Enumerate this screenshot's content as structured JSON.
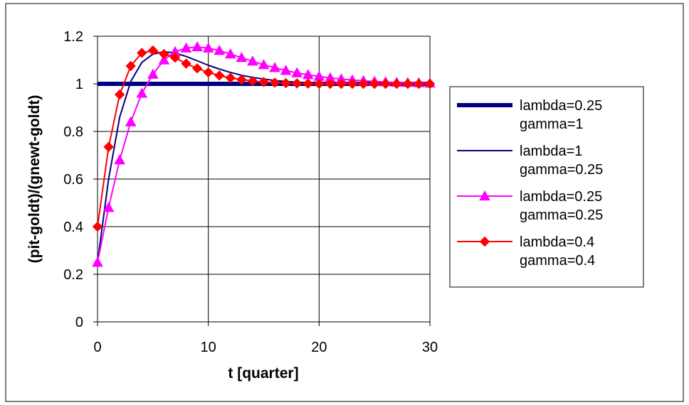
{
  "chart_data": {
    "type": "line",
    "title": "",
    "xlabel": "t [quarter]",
    "ylabel": "(pit-goldt)/(gnewt-goldt)",
    "xlim": [
      0,
      30
    ],
    "ylim": [
      0,
      1.2
    ],
    "xticks": [
      0,
      10,
      20,
      30
    ],
    "yticks": [
      0,
      0.2,
      0.4,
      0.6,
      0.8,
      1,
      1.2
    ],
    "xtick_labels": [
      "0",
      "10",
      "20",
      "30"
    ],
    "ytick_labels": [
      "0",
      "0.2",
      "0.4",
      "0.6",
      "0.8",
      "1",
      "1.2"
    ],
    "grid": "horizontal and vertical major gridlines",
    "legend_position": "right",
    "x": [
      0,
      1,
      2,
      3,
      4,
      5,
      6,
      7,
      8,
      9,
      10,
      11,
      12,
      13,
      14,
      15,
      16,
      17,
      18,
      19,
      20,
      21,
      22,
      23,
      24,
      25,
      26,
      27,
      28,
      29,
      30
    ],
    "series": [
      {
        "name": "lambda=0.25 gamma=1",
        "legend_lines": [
          "lambda=0.25",
          "gamma=1"
        ],
        "color": "#000080",
        "marker": "none",
        "style": "thick",
        "values": [
          1,
          1,
          1,
          1,
          1,
          1,
          1,
          1,
          1,
          1,
          1,
          1,
          1,
          1,
          1,
          1,
          1,
          1,
          1,
          1,
          1,
          1,
          1,
          1,
          1,
          1,
          1,
          1,
          1,
          1,
          1
        ]
      },
      {
        "name": "lambda=1 gamma=0.25",
        "legend_lines": [
          "lambda=1",
          "gamma=0.25"
        ],
        "color": "#000080",
        "marker": "none",
        "style": "thin",
        "values": [
          0.25,
          0.6,
          0.86,
          1.01,
          1.09,
          1.125,
          1.135,
          1.13,
          1.115,
          1.097,
          1.078,
          1.062,
          1.048,
          1.036,
          1.027,
          1.02,
          1.014,
          1.01,
          1.007,
          1.005,
          1.003,
          1.002,
          1.001,
          1.001,
          1.0,
          1.0,
          1.0,
          1.0,
          1.0,
          1.0,
          1.0
        ]
      },
      {
        "name": "lambda=0.25 gamma=0.25",
        "legend_lines": [
          "lambda=0.25",
          "gamma=0.25"
        ],
        "color": "#FF00FF",
        "marker": "triangle",
        "style": "thin",
        "values": [
          0.25,
          0.48,
          0.68,
          0.84,
          0.96,
          1.04,
          1.1,
          1.135,
          1.15,
          1.155,
          1.15,
          1.14,
          1.125,
          1.11,
          1.095,
          1.08,
          1.068,
          1.056,
          1.046,
          1.038,
          1.031,
          1.025,
          1.02,
          1.016,
          1.013,
          1.01,
          1.008,
          1.006,
          1.005,
          1.004,
          1.003
        ]
      },
      {
        "name": "lambda=0.4 gamma=0.4",
        "legend_lines": [
          "lambda=0.4",
          "gamma=0.4"
        ],
        "color": "#FF0000",
        "marker": "diamond",
        "style": "thin",
        "values": [
          0.4,
          0.735,
          0.955,
          1.075,
          1.13,
          1.14,
          1.125,
          1.11,
          1.085,
          1.065,
          1.048,
          1.035,
          1.025,
          1.018,
          1.012,
          1.008,
          1.005,
          1.003,
          1.002,
          1.001,
          1.0,
          1.0,
          1.0,
          1.0,
          1.0,
          1.0,
          1.0,
          1.0,
          1.0,
          1.0,
          1.0
        ]
      }
    ]
  }
}
